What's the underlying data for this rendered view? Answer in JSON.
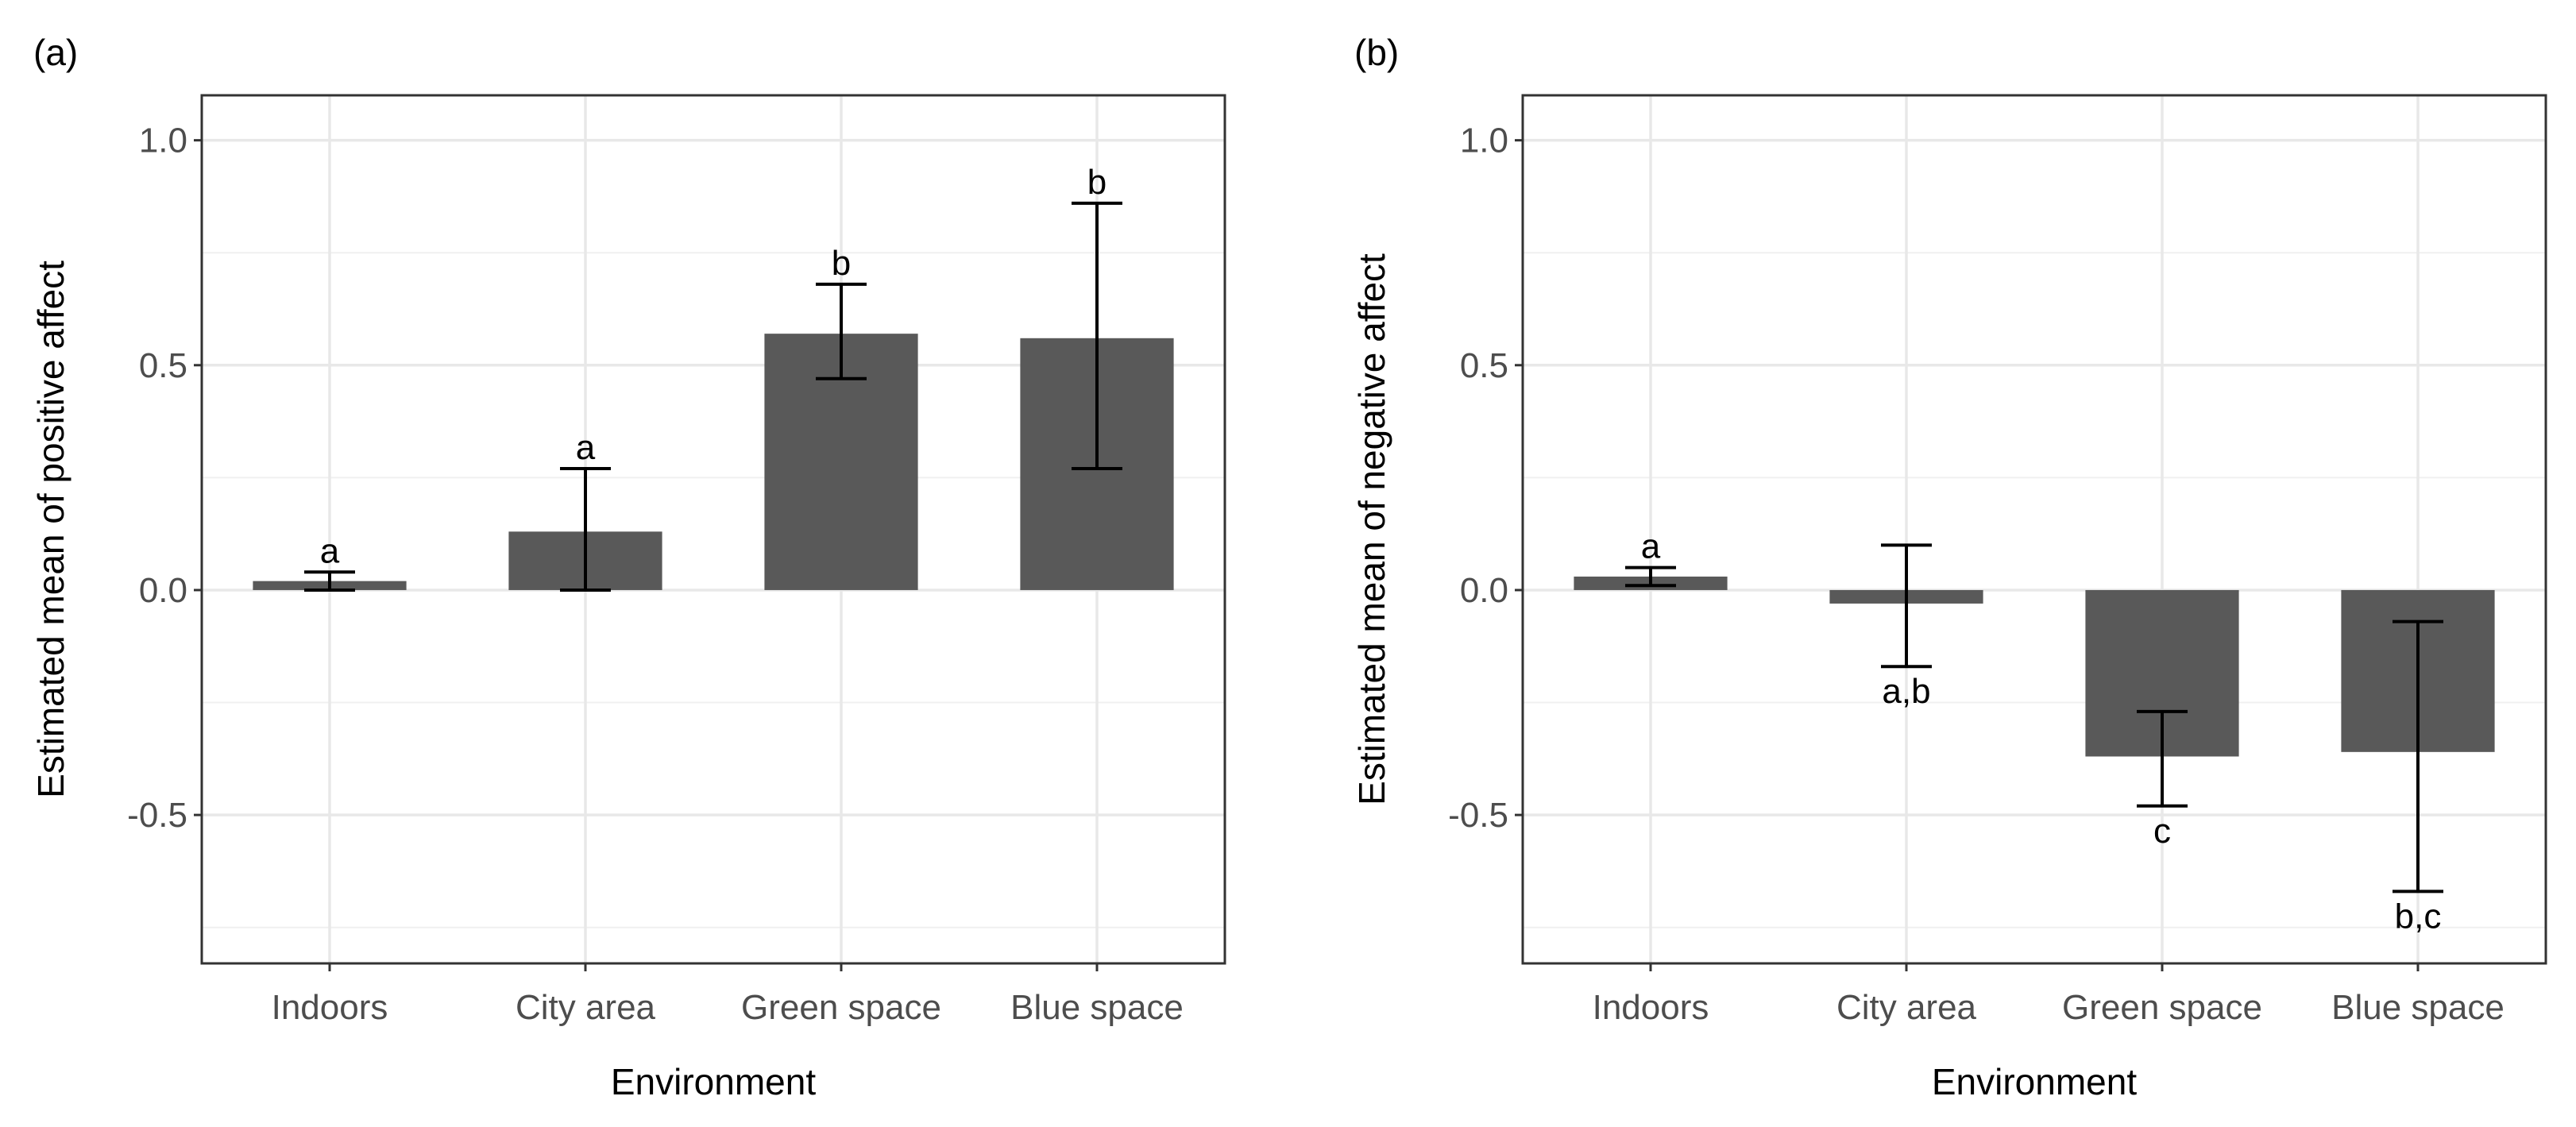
{
  "chart_data": [
    {
      "type": "bar",
      "panel_label": "(a)",
      "title": "",
      "xlabel": "Environment",
      "ylabel": "Estimated mean of positive affect",
      "categories": [
        "Indoors",
        "City area",
        "Green space",
        "Blue space"
      ],
      "values": [
        0.02,
        0.13,
        0.57,
        0.56
      ],
      "error_low": [
        0.0,
        0.0,
        0.47,
        0.27
      ],
      "error_high": [
        0.04,
        0.27,
        0.68,
        0.86
      ],
      "significance_labels": [
        "a",
        "a",
        "b",
        "b"
      ],
      "ylim": [
        -0.83,
        1.1
      ],
      "yticks": [
        -0.5,
        0.0,
        0.5,
        1.0
      ],
      "ytick_labels": [
        "-0.5",
        "0.0",
        "0.5",
        "1.0"
      ],
      "grid": true,
      "bar_color": "#595959"
    },
    {
      "type": "bar",
      "panel_label": "(b)",
      "title": "",
      "xlabel": "Environment",
      "ylabel": "Estimated mean of negative affect",
      "categories": [
        "Indoors",
        "City area",
        "Green space",
        "Blue space"
      ],
      "values": [
        0.03,
        -0.03,
        -0.37,
        -0.36
      ],
      "error_low": [
        0.01,
        -0.17,
        -0.48,
        -0.67
      ],
      "error_high": [
        0.05,
        0.1,
        -0.27,
        -0.07
      ],
      "significance_labels": [
        "a",
        "a,b",
        "c",
        "b,c"
      ],
      "ylim": [
        -0.83,
        1.1
      ],
      "yticks": [
        -0.5,
        0.0,
        0.5,
        1.0
      ],
      "ytick_labels": [
        "-0.5",
        "0.0",
        "0.5",
        "1.0"
      ],
      "grid": true,
      "bar_color": "#595959"
    }
  ]
}
